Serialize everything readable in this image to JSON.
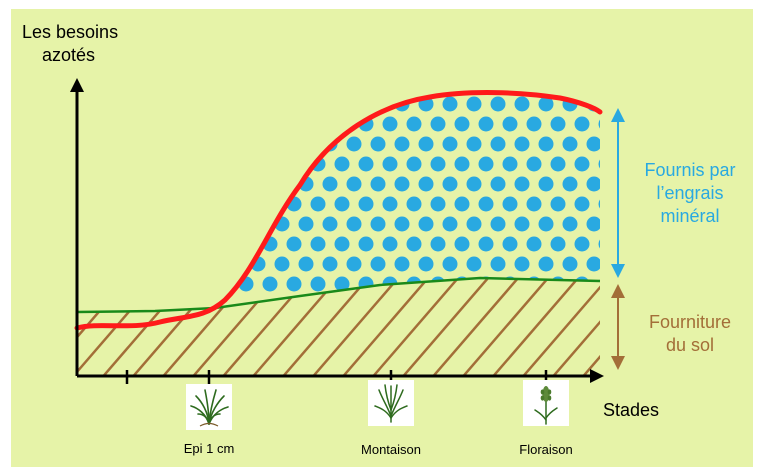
{
  "diagram": {
    "y_axis_label_line1": "Les besoins",
    "y_axis_label_line2": "azotés",
    "x_axis_label": "Stades",
    "fertilizer_label_line1": "Fournis par",
    "fertilizer_label_line2": "l’engrais",
    "fertilizer_label_line3": "minéral",
    "soil_label_line1": "Fourniture",
    "soil_label_line2": "du sol",
    "stages": [
      {
        "label": "Epi 1 cm",
        "icon": "wheat-tuft-icon"
      },
      {
        "label": "Montaison",
        "icon": "wheat-stem-icon"
      },
      {
        "label": "Floraison",
        "icon": "wheat-flower-icon"
      }
    ],
    "colors": {
      "background": "#e6f3a8",
      "need_curve": "#ff1a1a",
      "soil_supply_curve": "#1a8a1a",
      "fertilizer_dots": "#29a9e1",
      "soil_hatch": "#a36e38",
      "fertilizer_arrow": "#29a9e1",
      "soil_arrow": "#a36e38"
    }
  }
}
